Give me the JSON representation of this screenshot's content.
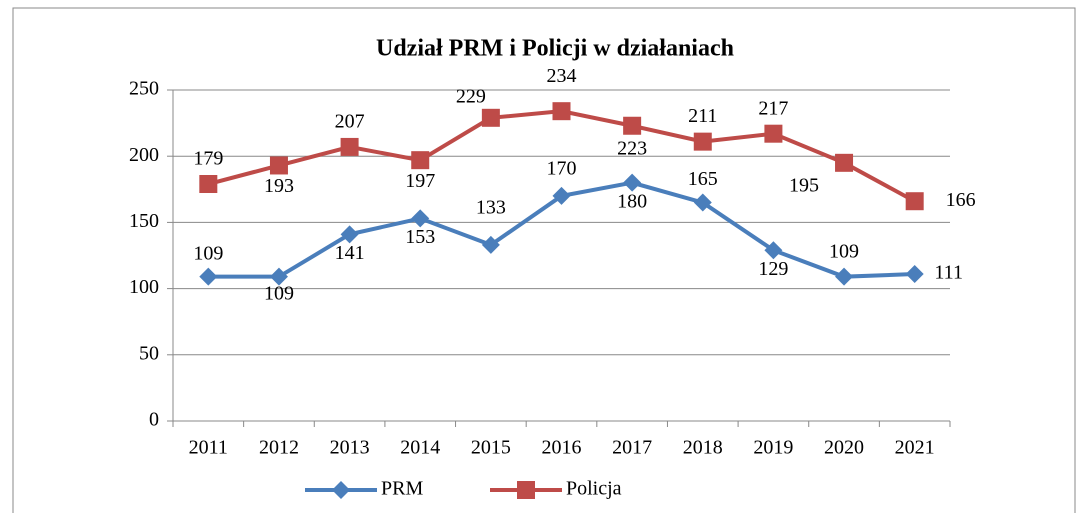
{
  "chart_data": {
    "type": "line",
    "title": "Udział PRM i Policji w działaniach",
    "categories": [
      "2011",
      "2012",
      "2013",
      "2014",
      "2015",
      "2016",
      "2017",
      "2018",
      "2019",
      "2020",
      "2021"
    ],
    "series": [
      {
        "name": "PRM",
        "color": "#4a7ebb",
        "values": [
          109,
          109,
          141,
          153,
          133,
          170,
          180,
          165,
          129,
          109,
          111
        ]
      },
      {
        "name": "Policja",
        "color": "#be4b48",
        "values": [
          179,
          193,
          207,
          197,
          229,
          234,
          223,
          211,
          217,
          195,
          166
        ]
      }
    ],
    "ylim": [
      0,
      250
    ],
    "yticks": [
      0,
      50,
      100,
      150,
      200,
      250
    ],
    "grid": true,
    "legend": "bottom"
  }
}
